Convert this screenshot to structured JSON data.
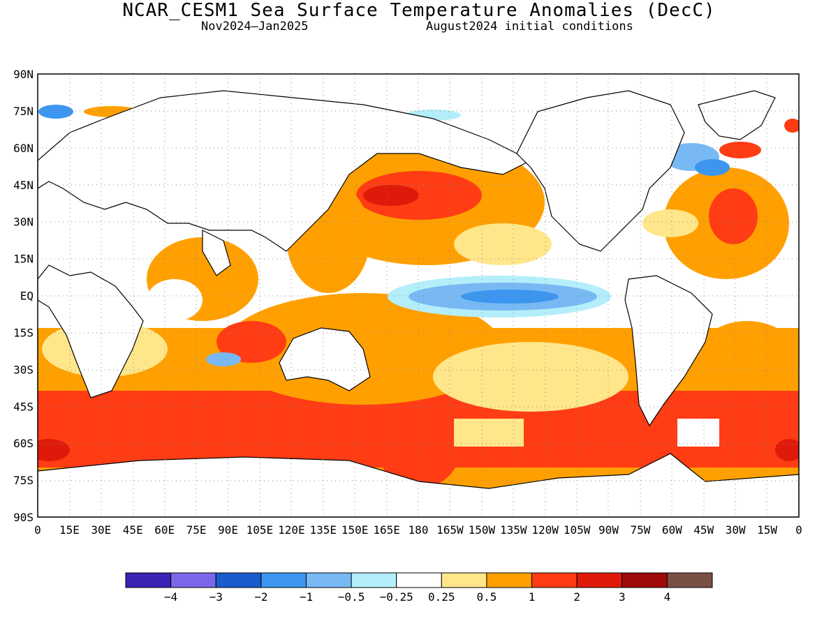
{
  "title": "NCAR_CESM1 Sea Surface Temperature Anomalies (DecC)",
  "subtitle_left": "Nov2024–Jan2025",
  "subtitle_right": "August2024 initial conditions",
  "map": {
    "lat_labels": [
      "90N",
      "75N",
      "60N",
      "45N",
      "30N",
      "15N",
      "EQ",
      "15S",
      "30S",
      "45S",
      "60S",
      "75S",
      "90S"
    ],
    "lon_labels": [
      "0",
      "15E",
      "30E",
      "45E",
      "60E",
      "75E",
      "90E",
      "105E",
      "120E",
      "135E",
      "150E",
      "165E",
      "180",
      "165W",
      "150W",
      "135W",
      "120W",
      "105W",
      "90W",
      "75W",
      "60W",
      "45W",
      "30W",
      "15W",
      "0"
    ],
    "lat_range": [
      -90,
      90
    ],
    "lon_range": [
      0,
      360
    ],
    "grid": "dotted"
  },
  "colorbar": {
    "colors": [
      "#3a22b4",
      "#7b68e8",
      "#1a5ccc",
      "#3c96f0",
      "#78b9f4",
      "#b4eefa",
      "#ffffff",
      "#ffe68a",
      "#ffa000",
      "#ff3c14",
      "#e01a0a",
      "#a00a0a",
      "#7a5044"
    ],
    "labels": [
      "−4",
      "−3",
      "−2",
      "−1",
      "−0.5",
      "−0.25",
      "0.25",
      "0.5",
      "1",
      "2",
      "3",
      "4"
    ]
  }
}
